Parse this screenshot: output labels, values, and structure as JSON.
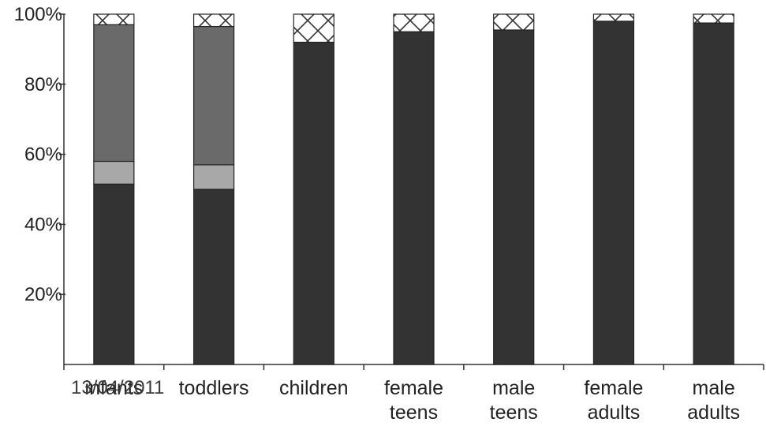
{
  "chart_data": {
    "type": "bar",
    "stacked": true,
    "title": "",
    "xlabel": "",
    "ylabel": "",
    "ylim": [
      0,
      100
    ],
    "y_ticks": [
      "20%",
      "40%",
      "60%",
      "80%",
      "100%"
    ],
    "categories": [
      [
        "infants"
      ],
      [
        "toddlers"
      ],
      [
        "children"
      ],
      [
        "female",
        "teens"
      ],
      [
        "male",
        "teens"
      ],
      [
        "female",
        "adults"
      ],
      [
        "male",
        "adults"
      ]
    ],
    "series": [
      {
        "values": [
          51.5,
          50,
          92,
          95,
          95.5,
          98,
          97.5
        ],
        "color": "#333333",
        "pattern": "solid"
      },
      {
        "values": [
          6.5,
          7,
          0,
          0,
          0,
          0,
          0
        ],
        "color": "#a8a8a8",
        "pattern": "solid"
      },
      {
        "values": [
          39,
          39.5,
          0,
          0,
          0,
          0,
          0
        ],
        "color": "#6a6a6a",
        "pattern": "solid"
      },
      {
        "values": [
          3,
          3.5,
          8,
          5,
          4.5,
          2,
          2.5
        ],
        "color": "#ffffff",
        "pattern": "crosshatch"
      }
    ],
    "grid": false,
    "legend": "none"
  },
  "footer": {
    "date": "13/04/2011"
  }
}
